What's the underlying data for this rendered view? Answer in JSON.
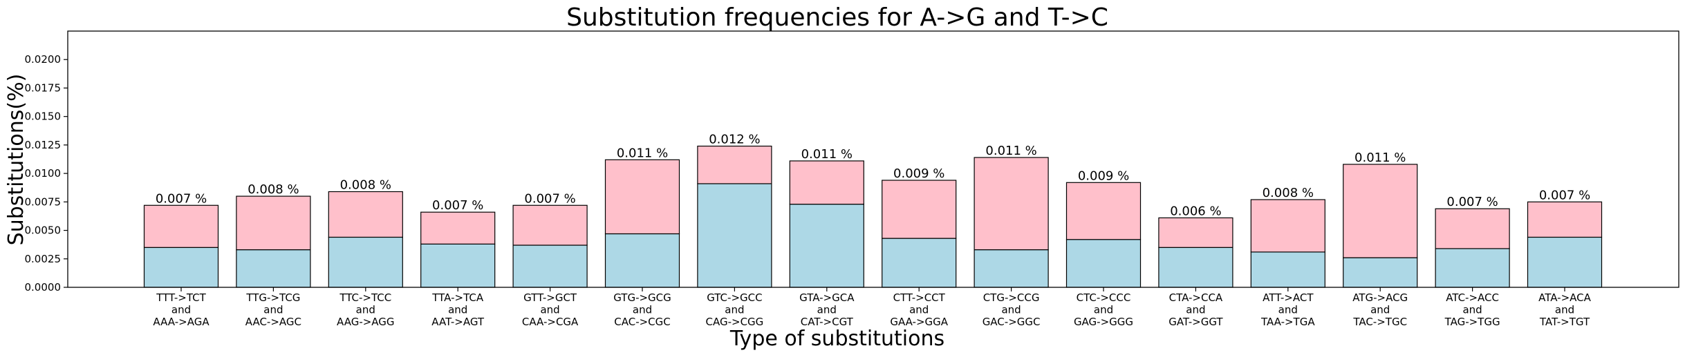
{
  "chart_data": {
    "type": "bar",
    "stacked": true,
    "title": "Substitution frequencies for A->G and T->C",
    "xlabel": "Type of substitutions",
    "ylabel": "Substitutions(%)",
    "ylim": [
      0,
      0.0225
    ],
    "yticks": [
      "0.0000",
      "0.0025",
      "0.0050",
      "0.0075",
      "0.0100",
      "0.0125",
      "0.0150",
      "0.0175",
      "0.0200"
    ],
    "categories": [
      [
        "TTT->TCT",
        "and",
        "AAA->AGA"
      ],
      [
        "TTG->TCG",
        "and",
        "AAC->AGC"
      ],
      [
        "TTC->TCC",
        "and",
        "AAG->AGG"
      ],
      [
        "TTA->TCA",
        "and",
        "AAT->AGT"
      ],
      [
        "GTT->GCT",
        "and",
        "CAA->CGA"
      ],
      [
        "GTG->GCG",
        "and",
        "CAC->CGC"
      ],
      [
        "GTC->GCC",
        "and",
        "CAG->CGG"
      ],
      [
        "GTA->GCA",
        "and",
        "CAT->CGT"
      ],
      [
        "CTT->CCT",
        "and",
        "GAA->GGA"
      ],
      [
        "CTG->CCG",
        "and",
        "GAC->GGC"
      ],
      [
        "CTC->CCC",
        "and",
        "GAG->GGG"
      ],
      [
        "CTA->CCA",
        "and",
        "GAT->GGT"
      ],
      [
        "ATT->ACT",
        "and",
        "TAA->TGA"
      ],
      [
        "ATG->ACG",
        "and",
        "TAC->TGC"
      ],
      [
        "ATC->ACC",
        "and",
        "TAG->TGG"
      ],
      [
        "ATA->ACA",
        "and",
        "TAT->TGT"
      ]
    ],
    "series": [
      {
        "color": "#add8e6",
        "values": [
          0.0035,
          0.0033,
          0.0044,
          0.0038,
          0.0037,
          0.0047,
          0.0091,
          0.0073,
          0.0043,
          0.0033,
          0.0042,
          0.0035,
          0.0031,
          0.0026,
          0.0034,
          0.0044
        ]
      },
      {
        "color": "#ffc0cb",
        "values": [
          0.0037,
          0.0047,
          0.004,
          0.0028,
          0.0035,
          0.0065,
          0.0033,
          0.0038,
          0.0051,
          0.0081,
          0.005,
          0.0026,
          0.0046,
          0.0082,
          0.0035,
          0.0031
        ]
      }
    ],
    "totals": [
      0.0072,
      0.008,
      0.0084,
      0.0066,
      0.0072,
      0.0112,
      0.0124,
      0.0111,
      0.0094,
      0.0114,
      0.0092,
      0.0061,
      0.0077,
      0.0108,
      0.0069,
      0.0075
    ],
    "data_labels": [
      "0.007 %",
      "0.008 %",
      "0.008 %",
      "0.007 %",
      "0.007 %",
      "0.011 %",
      "0.012 %",
      "0.011 %",
      "0.009 %",
      "0.011 %",
      "0.009 %",
      "0.006 %",
      "0.008 %",
      "0.011 %",
      "0.007 %",
      "0.007 %"
    ],
    "grid": false,
    "legend": "none"
  }
}
